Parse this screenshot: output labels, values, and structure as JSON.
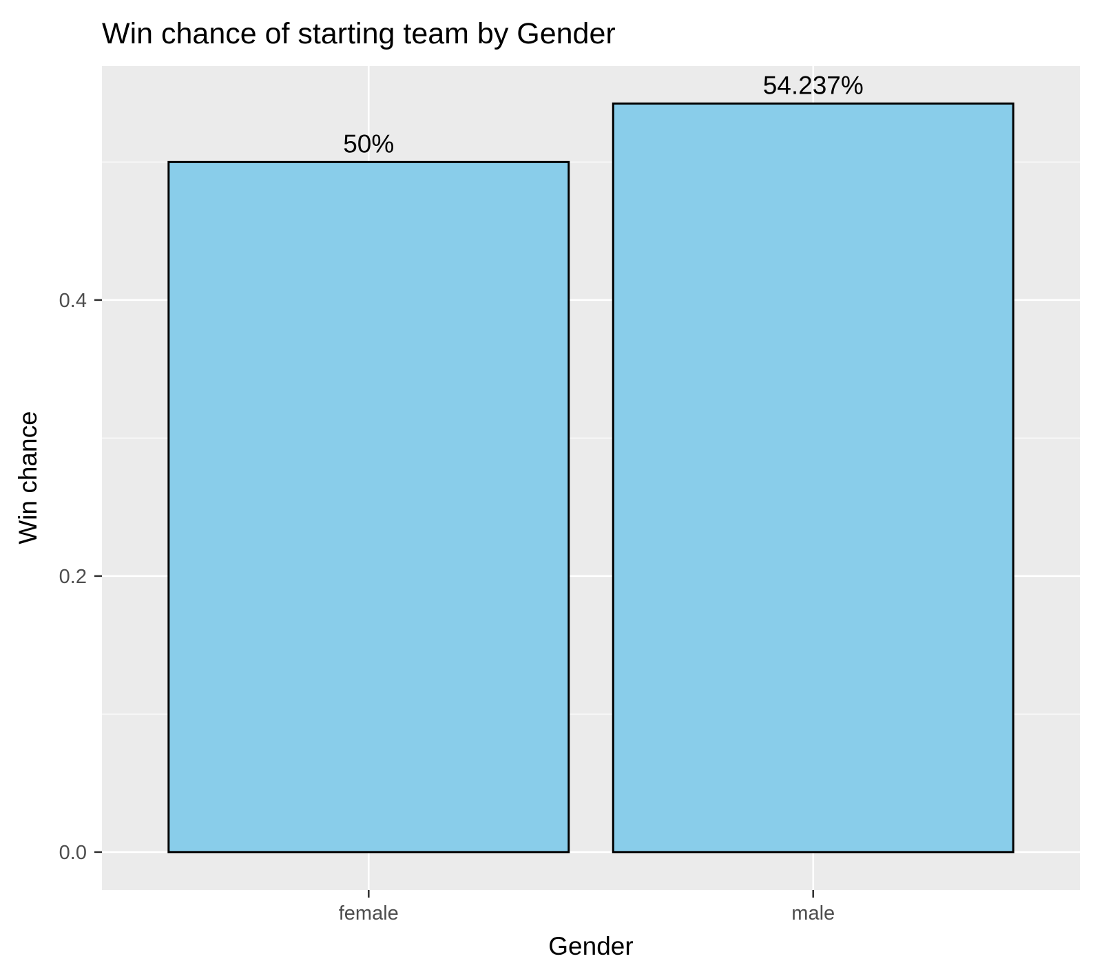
{
  "chart_data": {
    "type": "bar",
    "title": "Win chance of starting team by Gender",
    "xlabel": "Gender",
    "ylabel": "Win chance",
    "categories": [
      "female",
      "male"
    ],
    "values": [
      0.5,
      0.54237
    ],
    "data_labels": [
      "50%",
      "54.237%"
    ],
    "y_ticks": [
      0.0,
      0.2,
      0.4
    ],
    "y_tick_labels": [
      "0.0",
      "0.2",
      "0.4"
    ],
    "ylim": [
      -0.0275,
      0.5695
    ],
    "grid": true,
    "legend": "none",
    "colors": {
      "bar_fill": "#89CDEA",
      "bar_stroke": "#000000",
      "panel_background": "#EBEBEB",
      "grid": "#FFFFFF",
      "tick": "#333333"
    }
  }
}
